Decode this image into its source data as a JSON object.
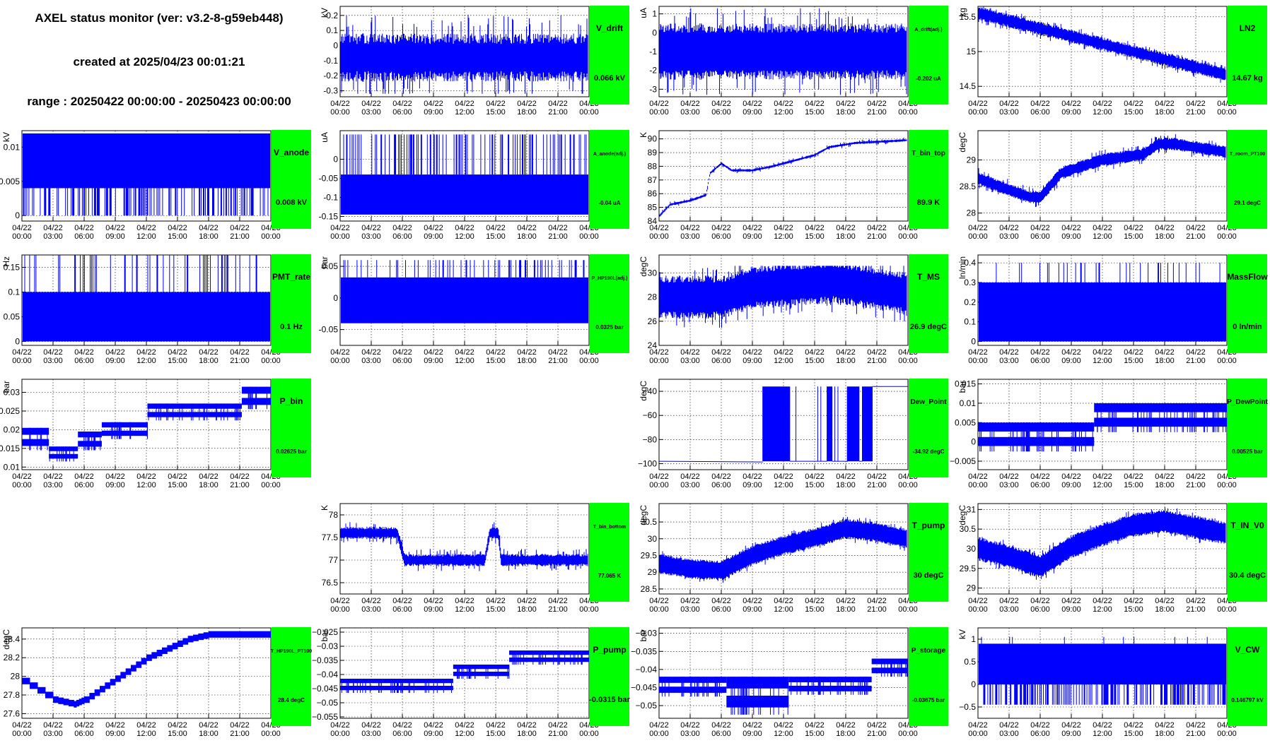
{
  "header": {
    "title": "AXEL status monitor (ver: v3.2-8-g59eb448)",
    "created": "created at 2025/04/23 00:01:21",
    "range": "range : 20250422 00:00:00 - 20250423 00:00:00"
  },
  "colors": {
    "trace": "#0000ff",
    "status_box": "#00ff00",
    "grid": "#000000"
  },
  "time_ticks": [
    [
      "04/22",
      "00:00"
    ],
    [
      "04/22",
      "03:00"
    ],
    [
      "04/22",
      "06:00"
    ],
    [
      "04/22",
      "09:00"
    ],
    [
      "04/22",
      "12:00"
    ],
    [
      "04/22",
      "15:00"
    ],
    [
      "04/22",
      "18:00"
    ],
    [
      "04/22",
      "21:00"
    ],
    [
      "04/23",
      "00:00"
    ]
  ],
  "chart_data": [
    {
      "id": "v-drift",
      "row": 0,
      "col": 1,
      "type": "line",
      "unit": "kV",
      "name": "V_drift",
      "status": "0.066 kV",
      "status_large": true,
      "y_ticks": [
        [
          "0.2",
          "0.2"
        ],
        [
          "0.1",
          "0.1"
        ],
        [
          "0",
          "0"
        ],
        [
          "-0.1",
          "-0.1"
        ],
        [
          "-0.2",
          "-0.2"
        ],
        [
          "-0.3",
          "-0.3"
        ]
      ],
      "ylim": [
        -0.34,
        0.26
      ],
      "profile": [
        [
          0,
          -0.08
        ],
        [
          24,
          -0.08
        ]
      ],
      "band": [
        0.09,
        0.16,
        0.29
      ],
      "lo_clip": -0.32,
      "hi_clip": 0.24
    },
    {
      "id": "a-drift",
      "row": 0,
      "col": 2,
      "type": "line",
      "unit": "uA",
      "name": "A_drift(adj.)",
      "status": "-0.202 uA",
      "status_large": false,
      "y_ticks": [
        [
          "1",
          "1"
        ],
        [
          "0",
          "0"
        ],
        [
          "-1",
          "-1"
        ],
        [
          "-2",
          "-2"
        ],
        [
          "-3",
          "-3"
        ]
      ],
      "ylim": [
        -3.4,
        1.4
      ],
      "profile": [
        [
          0,
          -1.0
        ],
        [
          24,
          -1.0
        ]
      ],
      "band": [
        1.0,
        1.5,
        2.4
      ],
      "lo_clip": -3.3,
      "hi_clip": 1.3
    },
    {
      "id": "ln2",
      "row": 0,
      "col": 3,
      "type": "line",
      "unit": "kg",
      "name": "LN2",
      "status": "14.67 kg",
      "status_large": true,
      "y_ticks": [
        [
          "15.5",
          "15.5"
        ],
        [
          "15",
          "15"
        ],
        [
          "14.5",
          "14.5"
        ]
      ],
      "ylim": [
        14.35,
        15.65
      ],
      "profile": [
        [
          0,
          15.55
        ],
        [
          24,
          14.67
        ]
      ],
      "band": [
        0.06,
        0.1,
        0.15
      ]
    },
    {
      "id": "v-anode",
      "row": 1,
      "col": 0,
      "type": "line",
      "unit": "kV",
      "name": "V_anode",
      "status": "0.008 kV",
      "status_large": true,
      "y_ticks": [
        [
          "0.01",
          "0.01"
        ],
        [
          "0.005",
          "0.005"
        ],
        [
          "0",
          "0"
        ]
      ],
      "ylim": [
        -0.0008,
        0.0124
      ],
      "style": "block",
      "block_lo": 0.004,
      "block_hi": 0.012,
      "spike_to": 0,
      "spike_p": 0.35
    },
    {
      "id": "a-anode",
      "row": 1,
      "col": 1,
      "type": "line",
      "unit": "uA",
      "name": "A_anode(adj.)",
      "status": "-0.04 uA",
      "status_large": false,
      "y_ticks": [
        [
          "0",
          "0"
        ],
        [
          "-0.05",
          "-0.05"
        ],
        [
          "-0.1",
          "-0.1"
        ],
        [
          "-0.15",
          "-0.15"
        ]
      ],
      "ylim": [
        -0.162,
        0.075
      ],
      "style": "block",
      "block_lo": -0.145,
      "block_hi": -0.04,
      "spike_to": 0.065,
      "spike_p": 0.25
    },
    {
      "id": "t-bin-top",
      "row": 1,
      "col": 2,
      "type": "line",
      "unit": "K",
      "name": "T_bin_top",
      "status": "89.9 K",
      "status_large": true,
      "y_ticks": [
        [
          "90",
          "90"
        ],
        [
          "89",
          "89"
        ],
        [
          "88",
          "88"
        ],
        [
          "87",
          "87"
        ],
        [
          "86",
          "86"
        ],
        [
          "85",
          "85"
        ],
        [
          "84",
          "84"
        ]
      ],
      "ylim": [
        84,
        90.6
      ],
      "profile": [
        [
          0,
          84.4
        ],
        [
          1,
          85.2
        ],
        [
          3,
          85.5
        ],
        [
          4.5,
          85.9
        ],
        [
          4.9,
          87.5
        ],
        [
          6,
          88.2
        ],
        [
          7,
          87.7
        ],
        [
          9,
          87.7
        ],
        [
          11,
          88.0
        ],
        [
          13,
          88.4
        ],
        [
          15,
          88.8
        ],
        [
          16.5,
          89.4
        ],
        [
          19,
          89.7
        ],
        [
          24,
          89.9
        ]
      ],
      "band": [
        0.05,
        0.1,
        0.22
      ]
    },
    {
      "id": "t-room",
      "row": 1,
      "col": 3,
      "type": "line",
      "unit": "degC",
      "name": "T_room_PT100",
      "status": "29.1 degC",
      "status_large": false,
      "y_ticks": [
        [
          "29",
          "29"
        ],
        [
          "28.5",
          "28.5"
        ],
        [
          "28",
          "28"
        ]
      ],
      "ylim": [
        27.85,
        29.55
      ],
      "profile": [
        [
          0,
          28.65
        ],
        [
          2,
          28.5
        ],
        [
          5,
          28.3
        ],
        [
          6,
          28.3
        ],
        [
          8,
          28.75
        ],
        [
          12,
          29.0
        ],
        [
          16,
          29.1
        ],
        [
          17.5,
          29.3
        ],
        [
          19,
          29.3
        ],
        [
          24,
          29.15
        ]
      ],
      "band": [
        0.08,
        0.12,
        0.2
      ]
    },
    {
      "id": "pmt-rate",
      "row": 2,
      "col": 0,
      "type": "line",
      "unit": "Hz",
      "name": "PMT_rate",
      "status": "0.1 Hz",
      "status_large": true,
      "y_ticks": [
        [
          "0.15",
          "0.15"
        ],
        [
          "0.1",
          "0.1"
        ],
        [
          "0.05",
          "0.05"
        ],
        [
          "0",
          "0"
        ]
      ],
      "ylim": [
        -0.008,
        0.175
      ],
      "style": "block",
      "block_lo": 0,
      "block_hi": 0.1,
      "spike_to": 0.2,
      "spike_p": 0.12
    },
    {
      "id": "p-hp190l",
      "row": 2,
      "col": 1,
      "type": "line",
      "unit": "bar",
      "name": "P_HP190L(adj.)",
      "status": "0.0325 bar",
      "status_large": false,
      "y_ticks": [
        [
          "0.05",
          "0.05"
        ],
        [
          "0",
          "0"
        ],
        [
          "-0.05",
          "-0.05"
        ]
      ],
      "ylim": [
        -0.075,
        0.068
      ],
      "style": "block",
      "block_lo": -0.04,
      "block_hi": 0.0325,
      "spike_to": 0.06,
      "spike_p": 0.15
    },
    {
      "id": "t-ms",
      "row": 2,
      "col": 2,
      "type": "line",
      "unit": "degC",
      "name": "T_MS",
      "status": "26.9 degC",
      "status_large": true,
      "y_ticks": [
        [
          "30",
          "30"
        ],
        [
          "28",
          "28"
        ],
        [
          "26",
          "26"
        ],
        [
          "24",
          "24"
        ]
      ],
      "ylim": [
        24,
        31.5
      ],
      "profile": [
        [
          0,
          28.0
        ],
        [
          6,
          28.0
        ],
        [
          9,
          28.8
        ],
        [
          12,
          29.0
        ],
        [
          17,
          29.3
        ],
        [
          24,
          28.3
        ]
      ],
      "band": [
        1.2,
        1.8,
        2.6
      ],
      "lo_clip": 24.3,
      "hi_clip": 30.6
    },
    {
      "id": "massflow",
      "row": 2,
      "col": 3,
      "type": "line",
      "unit": "ln/min",
      "name": "MassFlow",
      "status": "0 ln/min",
      "status_large": true,
      "y_ticks": [
        [
          "0.4",
          "0.4"
        ],
        [
          "0.3",
          "0.3"
        ],
        [
          "0.2",
          "0.2"
        ],
        [
          "0.1",
          "0.1"
        ],
        [
          "0",
          "0"
        ]
      ],
      "ylim": [
        -0.02,
        0.44
      ],
      "style": "block",
      "block_lo": 0,
      "block_hi": 0.3,
      "spike_to": 0.4,
      "spike_p": 0.1
    },
    {
      "id": "p-bin",
      "row": 3,
      "col": 0,
      "type": "line",
      "unit": "bar",
      "name": "P_bin",
      "status": "0.02625 bar",
      "status_large": false,
      "y_ticks": [
        [
          "0.03",
          "0.03"
        ],
        [
          "0.025",
          "0.025"
        ],
        [
          "0.02",
          "0.02"
        ],
        [
          "0.015",
          "0.015"
        ],
        [
          "0.01",
          "0.01"
        ]
      ],
      "ylim": [
        0.0093,
        0.0335
      ],
      "style": "steps",
      "steps": [
        [
          0,
          2.6,
          0.0145,
          0.0205
        ],
        [
          2.6,
          5.4,
          0.0115,
          0.0155
        ],
        [
          5.4,
          7.7,
          0.0145,
          0.0195
        ],
        [
          7.7,
          12.1,
          0.0175,
          0.022
        ],
        [
          12.1,
          21.2,
          0.0225,
          0.027
        ],
        [
          21.2,
          24,
          0.0255,
          0.0315
        ]
      ]
    },
    {
      "id": "dew-point",
      "row": 3,
      "col": 2,
      "type": "line",
      "unit": "degC",
      "name": "Dew_Point",
      "status": "-34.92 degC",
      "status_large": false,
      "y_ticks": [
        [
          "-40",
          "−40"
        ],
        [
          "-60",
          "−60"
        ],
        [
          "-80",
          "−80"
        ],
        [
          "-100",
          "−100"
        ]
      ],
      "ylim": [
        -105,
        -30
      ],
      "style": "dew"
    },
    {
      "id": "p-dewpoint",
      "row": 3,
      "col": 3,
      "type": "line",
      "unit": "bar",
      "name": "P_DewPoint",
      "status": "0.00525 bar",
      "status_large": false,
      "y_ticks": [
        [
          "0.015",
          "0.015"
        ],
        [
          "0.01",
          "0.01"
        ],
        [
          "0.005",
          "0.005"
        ],
        [
          "0",
          "0"
        ],
        [
          "-0.005",
          "−0.005"
        ]
      ],
      "ylim": [
        -0.0072,
        0.0162
      ],
      "style": "steps",
      "steps": [
        [
          0,
          11.2,
          -0.0025,
          0.005
        ],
        [
          11.2,
          24,
          0.0025,
          0.01
        ]
      ]
    },
    {
      "id": "t-bin-bottom",
      "row": 4,
      "col": 1,
      "type": "line",
      "unit": "K",
      "name": "T_bin_bottom",
      "status": "77.065 K",
      "status_large": false,
      "y_ticks": [
        [
          "78",
          "78"
        ],
        [
          "77.5",
          "77.5"
        ],
        [
          "77",
          "77"
        ],
        [
          "76.5",
          "76.5"
        ]
      ],
      "ylim": [
        76.25,
        78.25
      ],
      "profile": [
        [
          0,
          77.6
        ],
        [
          5.5,
          77.6
        ],
        [
          6.2,
          77.0
        ],
        [
          14,
          77.0
        ],
        [
          14.5,
          77.6
        ],
        [
          15.3,
          77.6
        ],
        [
          15.6,
          77.0
        ],
        [
          24,
          77.0
        ]
      ],
      "band": [
        0.08,
        0.14,
        0.25
      ]
    },
    {
      "id": "t-pump",
      "row": 4,
      "col": 2,
      "type": "line",
      "unit": "degC",
      "name": "T_pump",
      "status": "30 degC",
      "status_large": true,
      "y_ticks": [
        [
          "30.5",
          "30.5"
        ],
        [
          "30",
          "30"
        ],
        [
          "29.5",
          "29.5"
        ],
        [
          "29",
          "29"
        ],
        [
          "28.5",
          "28.5"
        ]
      ],
      "ylim": [
        28.35,
        31.05
      ],
      "profile": [
        [
          0,
          29.25
        ],
        [
          3,
          29.1
        ],
        [
          6,
          29.05
        ],
        [
          9,
          29.5
        ],
        [
          12,
          29.8
        ],
        [
          16,
          30.1
        ],
        [
          18,
          30.3
        ],
        [
          21,
          30.2
        ],
        [
          24,
          30.0
        ]
      ],
      "band": [
        0.22,
        0.3,
        0.4
      ]
    },
    {
      "id": "t-in-v0",
      "row": 4,
      "col": 3,
      "type": "line",
      "unit": "degC",
      "name": "T_IN_V0",
      "status": "30.4 degC",
      "status_large": true,
      "y_ticks": [
        [
          "31",
          "31"
        ],
        [
          "30.5",
          "30.5"
        ],
        [
          "30",
          "30"
        ],
        [
          "29.5",
          "29.5"
        ],
        [
          "29",
          "29"
        ]
      ],
      "ylim": [
        28.85,
        31.15
      ],
      "profile": [
        [
          0,
          30.0
        ],
        [
          3,
          29.8
        ],
        [
          6,
          29.55
        ],
        [
          9,
          30.05
        ],
        [
          12,
          30.35
        ],
        [
          15,
          30.6
        ],
        [
          18,
          30.7
        ],
        [
          21,
          30.55
        ],
        [
          24,
          30.4
        ]
      ],
      "band": [
        0.22,
        0.3,
        0.4
      ]
    },
    {
      "id": "t-hp190l",
      "row": 5,
      "col": 0,
      "type": "line",
      "unit": "degC",
      "name": "T_HP190L_PT100",
      "status": "28.4 degC",
      "status_large": false,
      "y_ticks": [
        [
          "28.4",
          "28.4"
        ],
        [
          "28.2",
          "28.2"
        ],
        [
          "28",
          "28"
        ],
        [
          "27.8",
          "27.8"
        ],
        [
          "27.6",
          "27.6"
        ]
      ],
      "ylim": [
        27.55,
        28.52
      ],
      "style": "staircase",
      "profile": [
        [
          0,
          27.95
        ],
        [
          3,
          27.75
        ],
        [
          5,
          27.7
        ],
        [
          6,
          27.75
        ],
        [
          8,
          27.9
        ],
        [
          10,
          28.05
        ],
        [
          12,
          28.2
        ],
        [
          14,
          28.3
        ],
        [
          16,
          28.4
        ],
        [
          18,
          28.45
        ],
        [
          24,
          28.45
        ]
      ],
      "step_h": 0.07
    },
    {
      "id": "p-pump",
      "row": 5,
      "col": 1,
      "type": "line",
      "unit": "bar",
      "name": "P_pump",
      "status": "-0.0315 bar",
      "status_large": true,
      "y_ticks": [
        [
          "-0.025",
          "−0.025"
        ],
        [
          "-0.03",
          "−0.03"
        ],
        [
          "-0.035",
          "−0.035"
        ],
        [
          "-0.04",
          "−0.04"
        ],
        [
          "-0.045",
          "−0.045"
        ],
        [
          "-0.05",
          "−0.05"
        ],
        [
          "-0.055",
          "−0.055"
        ]
      ],
      "ylim": [
        -0.0555,
        -0.0235
      ],
      "style": "steps",
      "steps": [
        [
          0,
          10.9,
          -0.0465,
          -0.0415
        ],
        [
          10.9,
          16.3,
          -0.0415,
          -0.0365
        ],
        [
          16.3,
          24,
          -0.0365,
          -0.0315
        ]
      ]
    },
    {
      "id": "p-storage",
      "row": 5,
      "col": 2,
      "type": "line",
      "unit": "bar",
      "name": "P_storage",
      "status": "-0.03675 bar",
      "status_large": false,
      "y_ticks": [
        [
          "-0.03",
          "−0.03"
        ],
        [
          "-0.035",
          "−0.035"
        ],
        [
          "-0.04",
          "−0.04"
        ],
        [
          "-0.045",
          "−0.045"
        ],
        [
          "-0.05",
          "−0.05"
        ]
      ],
      "ylim": [
        -0.0535,
        -0.0285
      ],
      "style": "steps",
      "steps": [
        [
          0,
          6.5,
          -0.0475,
          -0.042
        ],
        [
          6.5,
          12.5,
          -0.0525,
          -0.042
        ],
        [
          12.5,
          20.5,
          -0.047,
          -0.042
        ],
        [
          20.5,
          24,
          -0.042,
          -0.037
        ]
      ]
    },
    {
      "id": "v-cw",
      "row": 5,
      "col": 3,
      "type": "line",
      "unit": "kV",
      "name": "V_CW",
      "status": "0.146797 kV",
      "status_large": false,
      "y_ticks": [
        [
          "1",
          "1"
        ],
        [
          "0.5",
          "0.5"
        ],
        [
          "0",
          "0"
        ],
        [
          "-0.5",
          "−0.5"
        ]
      ],
      "ylim": [
        -0.75,
        1.25
      ],
      "style": "block",
      "block_lo": 0,
      "block_hi": 0.9,
      "spike_to": -0.45,
      "spike_p": 0.4,
      "spike_up": 1.05
    }
  ]
}
